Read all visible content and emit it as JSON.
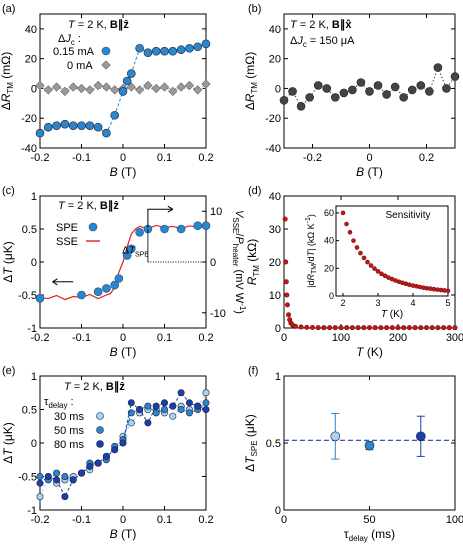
{
  "chart_data": [
    {
      "id": "a",
      "panel_label": "(a)",
      "type": "scatter",
      "annotation_lines": [
        "T = 2 K, B∥ẑ",
        "ΔJc :"
      ],
      "legend": [
        "0.15 mA",
        "0 mA"
      ],
      "xlabel": "B (T)",
      "ylabel": "ΔR_TM (mΩ)",
      "xlim": [
        -0.2,
        0.2
      ],
      "ylim": [
        -40,
        50
      ],
      "xticks": [
        "-0.2",
        "-0.1",
        "0",
        "0.1",
        "0.2"
      ],
      "xtick_values": [
        -0.2,
        -0.1,
        0,
        0.1,
        0.2
      ],
      "yticks": [
        "-40",
        "-20",
        "0",
        "20",
        "40"
      ],
      "ytick_values": [
        -40,
        -20,
        0,
        20,
        40
      ],
      "series": [
        {
          "name": "0.15 mA",
          "color": "#2b86cc",
          "marker": "circle",
          "line": "dashed",
          "x": [
            -0.2,
            -0.18,
            -0.16,
            -0.14,
            -0.12,
            -0.1,
            -0.08,
            -0.06,
            -0.04,
            -0.02,
            0,
            0.01,
            0.02,
            0.04,
            0.06,
            0.08,
            0.1,
            0.12,
            0.14,
            0.16,
            0.18,
            0.2
          ],
          "y": [
            -30,
            -26,
            -25,
            -24,
            -25,
            -25,
            -25,
            -26,
            -30,
            -18,
            -2,
            5,
            10,
            27,
            24,
            25,
            25,
            25,
            26,
            27,
            28,
            30
          ]
        },
        {
          "name": "0 mA",
          "color": "#9a9a9a",
          "marker": "diamond",
          "line": "dashed",
          "x": [
            -0.2,
            -0.18,
            -0.16,
            -0.14,
            -0.12,
            -0.1,
            -0.08,
            -0.06,
            -0.04,
            -0.02,
            0,
            0.02,
            0.04,
            0.06,
            0.08,
            0.1,
            0.12,
            0.14,
            0.16,
            0.18,
            0.2
          ],
          "y": [
            2,
            -1,
            1,
            -2,
            1,
            0,
            -1,
            2,
            1,
            -1,
            0,
            1,
            -1,
            2,
            0,
            1,
            -2,
            1,
            2,
            -1,
            3
          ]
        }
      ]
    },
    {
      "id": "b",
      "panel_label": "(b)",
      "type": "scatter",
      "annotation_lines": [
        "T = 2 K, B∥x̂",
        "ΔJc = 150 μA"
      ],
      "xlabel": "B (T)",
      "ylabel": "ΔR_TM (mΩ)",
      "xlim": [
        -0.3,
        0.3
      ],
      "ylim": [
        -40,
        50
      ],
      "xticks": [
        "-0.2",
        "0",
        "0.2"
      ],
      "xtick_values": [
        -0.2,
        0,
        0.2
      ],
      "yticks": [
        "-40",
        "-20",
        "0",
        "20",
        "40"
      ],
      "ytick_values": [
        -40,
        -20,
        0,
        20,
        40
      ],
      "series": [
        {
          "color": "#444444",
          "marker": "circle",
          "line": "dotted",
          "x": [
            -0.3,
            -0.27,
            -0.24,
            -0.21,
            -0.18,
            -0.15,
            -0.12,
            -0.09,
            -0.06,
            -0.03,
            0,
            0.03,
            0.06,
            0.09,
            0.12,
            0.15,
            0.18,
            0.21,
            0.24,
            0.27,
            0.3
          ],
          "y": [
            -8,
            -2,
            -12,
            -6,
            2,
            0,
            -6,
            -3,
            -1,
            4,
            -2,
            2,
            -4,
            1,
            -6,
            -1,
            2,
            -2,
            14,
            0,
            8
          ]
        }
      ]
    },
    {
      "id": "c",
      "panel_label": "(c)",
      "type": "line",
      "annotation_lines": [
        "T = 2 K, B∥ẑ"
      ],
      "legend": [
        "SPE",
        "SSE"
      ],
      "marker_label": "ΔT_SPE",
      "xlabel": "B (T)",
      "ylabel": "ΔT (μK)",
      "y2label": "V_SSE/P_heater (mV W⁻¹)",
      "xlim": [
        -0.2,
        0.2
      ],
      "ylim": [
        -1,
        1
      ],
      "xticks": [
        "-0.2",
        "-0.1",
        "0",
        "0.1",
        "0.2"
      ],
      "xtick_values": [
        -0.2,
        -0.1,
        0,
        0.1,
        0.2
      ],
      "yticks": [
        "-1",
        "-0.5",
        "0",
        "0.5",
        "1"
      ],
      "ytick_values": [
        -1,
        -0.5,
        0,
        0.5,
        1
      ],
      "y2lim": [
        -13,
        13
      ],
      "y2ticks": [
        "-10",
        "0",
        "10"
      ],
      "y2tick_values": [
        -10,
        0,
        10
      ],
      "series": [
        {
          "name": "SPE",
          "color": "#2b86cc",
          "marker": "circle",
          "x": [
            -0.2,
            -0.1,
            -0.06,
            -0.04,
            -0.02,
            -0.01,
            0.01,
            0.02,
            0.04,
            0.06,
            0.1,
            0.14,
            0.18,
            0.2
          ],
          "y": [
            -0.55,
            -0.5,
            -0.45,
            -0.4,
            -0.35,
            -0.25,
            0.1,
            0.2,
            0.45,
            0.5,
            0.5,
            0.5,
            0.55,
            0.55
          ]
        },
        {
          "name": "SSE",
          "color": "#e02020",
          "marker": "none",
          "axis": "y2",
          "x": [
            -0.2,
            -0.18,
            -0.16,
            -0.14,
            -0.12,
            -0.1,
            -0.08,
            -0.06,
            -0.04,
            -0.03,
            -0.02,
            -0.01,
            0,
            0.01,
            0.02,
            0.03,
            0.04,
            0.06,
            0.08,
            0.1,
            0.12,
            0.14,
            0.16,
            0.18,
            0.2
          ],
          "y": [
            -7,
            -7.2,
            -6.6,
            -7.4,
            -6.8,
            -7,
            -6.4,
            -7.2,
            -6.5,
            -6.2,
            -5,
            -2,
            0,
            3,
            5.5,
            6.5,
            7,
            6.6,
            7.2,
            6.8,
            7,
            6.6,
            7.1,
            6.9,
            7
          ]
        }
      ]
    },
    {
      "id": "d",
      "panel_label": "(d)",
      "type": "scatter",
      "xlabel": "T (K)",
      "ylabel": "R_TM (kΩ)",
      "xlim": [
        0,
        300
      ],
      "ylim": [
        0,
        40
      ],
      "xticks": [
        "0",
        "100",
        "200",
        "300"
      ],
      "xtick_values": [
        0,
        100,
        200,
        300
      ],
      "yticks": [
        "0",
        "10",
        "20",
        "30",
        "40"
      ],
      "ytick_values": [
        0,
        10,
        20,
        30,
        40
      ],
      "series": [
        {
          "color": "#c01818",
          "marker": "circle",
          "x": [
            2,
            3,
            4,
            5,
            6,
            8,
            10,
            12,
            15,
            20,
            30,
            40,
            50,
            60,
            70,
            80,
            90,
            100,
            110,
            120,
            130,
            140,
            150,
            160,
            170,
            180,
            190,
            200,
            210,
            220,
            230,
            240,
            250,
            260,
            270,
            280,
            290,
            300
          ],
          "y": [
            33,
            20,
            14,
            10,
            7,
            4,
            2.5,
            1.5,
            0.9,
            0.5,
            0.3,
            0.2,
            0.15,
            0.1,
            0.1,
            0.1,
            0.1,
            0.1,
            0.1,
            0.1,
            0.1,
            0.1,
            0.1,
            0.1,
            0.1,
            0.1,
            0.1,
            0.1,
            0.1,
            0.1,
            0.1,
            0.1,
            0.1,
            0.1,
            0.1,
            0.1,
            0.1,
            0.1
          ]
        }
      ],
      "inset": {
        "title": "Sensitivity",
        "xlabel": "T (K)",
        "ylabel": "|dR_TM/dT| (kΩ K⁻¹)",
        "xlim": [
          1.8,
          5
        ],
        "ylim": [
          0,
          65
        ],
        "xticks": [
          "2",
          "3",
          "4",
          "5"
        ],
        "xtick_values": [
          2,
          3,
          4,
          5
        ],
        "yticks": [
          "0",
          "20",
          "40",
          "60"
        ],
        "ytick_values": [
          0,
          20,
          40,
          60
        ],
        "series": [
          {
            "color": "#c01818",
            "marker": "circle",
            "x": [
              2,
              2.1,
              2.2,
              2.3,
              2.4,
              2.5,
              2.6,
              2.7,
              2.8,
              2.9,
              3,
              3.1,
              3.2,
              3.3,
              3.4,
              3.5,
              3.6,
              3.7,
              3.8,
              3.9,
              4,
              4.1,
              4.2,
              4.3,
              4.4,
              4.5,
              4.6,
              4.7,
              4.8,
              4.9,
              5
            ],
            "y": [
              60,
              52,
              46,
              40,
              35,
              31,
              27.5,
              24.5,
              22,
              19.8,
              17.8,
              16,
              14.6,
              13.3,
              12.2,
              11.2,
              10.3,
              9.5,
              8.8,
              8.1,
              7.5,
              7,
              6.5,
              6,
              5.6,
              5.3,
              4.9,
              4.6,
              4.3,
              4,
              3.8
            ]
          }
        ]
      }
    },
    {
      "id": "e",
      "panel_label": "(e)",
      "type": "scatter",
      "annotation_lines": [
        "T = 2 K, B∥ẑ",
        "τdelay :"
      ],
      "legend": [
        "30 ms",
        "50 ms",
        "80 ms"
      ],
      "xlabel": "B (T)",
      "ylabel": "ΔT (μK)",
      "xlim": [
        -0.2,
        0.2
      ],
      "ylim": [
        -1,
        1
      ],
      "xticks": [
        "-0.2",
        "-0.1",
        "0",
        "0.1",
        "0.2"
      ],
      "xtick_values": [
        -0.2,
        -0.1,
        0,
        0.1,
        0.2
      ],
      "yticks": [
        "-1",
        "-0.5",
        "0",
        "0.5",
        "1"
      ],
      "ytick_values": [
        -1,
        -0.5,
        0,
        0.5,
        1
      ],
      "series": [
        {
          "name": "30 ms",
          "color": "#a8d4f2",
          "marker": "circle",
          "line": "dashed",
          "x": [
            -0.2,
            -0.18,
            -0.16,
            -0.14,
            -0.12,
            -0.1,
            -0.08,
            -0.06,
            -0.04,
            -0.02,
            0,
            0.02,
            0.04,
            0.06,
            0.08,
            0.1,
            0.12,
            0.14,
            0.16,
            0.18,
            0.2
          ],
          "y": [
            -0.8,
            -0.5,
            -0.6,
            -0.55,
            -0.5,
            -0.45,
            -0.4,
            -0.3,
            -0.2,
            -0.1,
            0.1,
            0.3,
            0.45,
            0.5,
            0.5,
            0.45,
            0.4,
            0.55,
            0.5,
            0.55,
            0.75
          ]
        },
        {
          "name": "50 ms",
          "color": "#2b86cc",
          "marker": "circle",
          "line": "dashed",
          "x": [
            -0.2,
            -0.18,
            -0.16,
            -0.14,
            -0.12,
            -0.1,
            -0.08,
            -0.06,
            -0.04,
            -0.02,
            0,
            0.02,
            0.04,
            0.06,
            0.08,
            0.1,
            0.12,
            0.14,
            0.16,
            0.18,
            0.2
          ],
          "y": [
            -0.5,
            -0.55,
            -0.45,
            -0.5,
            -0.55,
            -0.45,
            -0.3,
            -0.3,
            -0.25,
            -0.05,
            0.05,
            0.45,
            0.5,
            0.55,
            0.45,
            0.5,
            0.55,
            0.5,
            0.45,
            0.5,
            0.6
          ]
        },
        {
          "name": "80 ms",
          "color": "#1a3fae",
          "marker": "circle",
          "line": "dashed",
          "x": [
            -0.2,
            -0.18,
            -0.16,
            -0.14,
            -0.12,
            -0.1,
            -0.08,
            -0.06,
            -0.04,
            -0.02,
            0,
            0.02,
            0.04,
            0.06,
            0.08,
            0.1,
            0.12,
            0.14,
            0.16,
            0.18,
            0.2
          ],
          "y": [
            -0.6,
            -0.5,
            -0.55,
            -0.8,
            -0.55,
            -0.45,
            -0.35,
            -0.3,
            -0.2,
            -0.1,
            0,
            0.6,
            0.5,
            0.3,
            0.55,
            0.6,
            0.55,
            0.75,
            0.6,
            0.55,
            0.5
          ]
        }
      ]
    },
    {
      "id": "f",
      "panel_label": "(f)",
      "type": "scatter",
      "xlabel": "τdelay (ms)",
      "ylabel": "ΔT_SPE (μK)",
      "xlim": [
        0,
        100
      ],
      "ylim": [
        0,
        1
      ],
      "xticks": [
        "0",
        "50",
        "100"
      ],
      "xtick_values": [
        0,
        50,
        100
      ],
      "yticks": [
        "0",
        "0.5",
        "1"
      ],
      "ytick_values": [
        0,
        0.5,
        1
      ],
      "reference_line": 0.52,
      "series": [
        {
          "name": "30 ms",
          "color": "#a8d4f2",
          "marker": "circle",
          "x": [
            30
          ],
          "y": [
            0.55
          ],
          "err": [
            0.17
          ]
        },
        {
          "name": "50 ms",
          "color": "#2b86cc",
          "marker": "circle",
          "x": [
            50
          ],
          "y": [
            0.48
          ],
          "err": [
            0.03
          ]
        },
        {
          "name": "80 ms",
          "color": "#1a3fae",
          "marker": "circle",
          "x": [
            80
          ],
          "y": [
            0.55
          ],
          "err": [
            0.15
          ]
        }
      ]
    }
  ]
}
